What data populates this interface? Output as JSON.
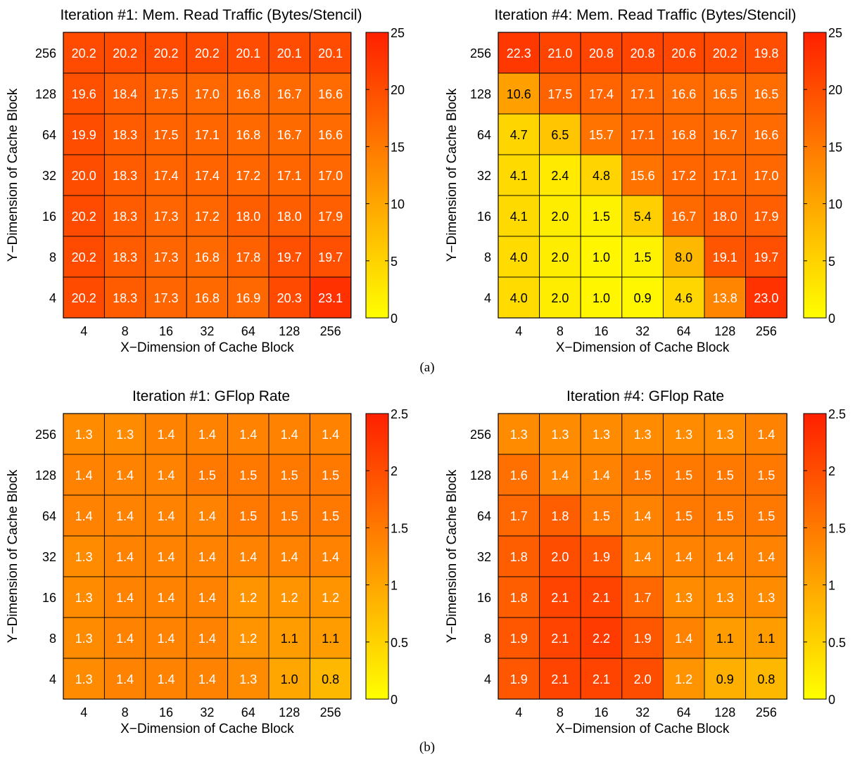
{
  "figure": {
    "caption_a": "(a)",
    "caption_b": "(b)"
  },
  "chart_data": [
    {
      "type": "heatmap",
      "title": "Iteration #1: Mem. Read Traffic (Bytes/Stencil)",
      "xlabel": "X−Dimension of Cache Block",
      "ylabel": "Y−Dimension of Cache Block",
      "x_categories": [
        "4",
        "8",
        "16",
        "32",
        "64",
        "128",
        "256"
      ],
      "y_categories": [
        "256",
        "128",
        "64",
        "32",
        "16",
        "8",
        "4"
      ],
      "values": [
        [
          20.2,
          20.2,
          20.2,
          20.2,
          20.1,
          20.1,
          20.1
        ],
        [
          19.6,
          18.4,
          17.5,
          17.0,
          16.8,
          16.7,
          16.6
        ],
        [
          19.9,
          18.3,
          17.5,
          17.1,
          16.8,
          16.7,
          16.6
        ],
        [
          20.0,
          18.3,
          17.4,
          17.4,
          17.2,
          17.1,
          17.0
        ],
        [
          20.2,
          18.3,
          17.3,
          17.2,
          18.0,
          18.0,
          17.9
        ],
        [
          20.2,
          18.3,
          17.3,
          16.8,
          17.8,
          19.7,
          19.7
        ],
        [
          20.2,
          18.3,
          17.3,
          16.8,
          16.9,
          20.3,
          23.1
        ]
      ],
      "value_labels": [
        [
          "20.2",
          "20.2",
          "20.2",
          "20.2",
          "20.1",
          "20.1",
          "20.1"
        ],
        [
          "19.6",
          "18.4",
          "17.5",
          "17.0",
          "16.8",
          "16.7",
          "16.6"
        ],
        [
          "19.9",
          "18.3",
          "17.5",
          "17.1",
          "16.8",
          "16.7",
          "16.6"
        ],
        [
          "20.0",
          "18.3",
          "17.4",
          "17.4",
          "17.2",
          "17.1",
          "17.0"
        ],
        [
          "20.2",
          "18.3",
          "17.3",
          "17.2",
          "18.0",
          "18.0",
          "17.9"
        ],
        [
          "20.2",
          "18.3",
          "17.3",
          "16.8",
          "17.8",
          "19.7",
          "19.7"
        ],
        [
          "20.2",
          "18.3",
          "17.3",
          "16.8",
          "16.9",
          "20.3",
          "23.1"
        ]
      ],
      "colorbar": {
        "range": [
          0,
          25
        ],
        "ticks": [
          "0",
          "5",
          "10",
          "15",
          "20",
          "25"
        ],
        "tick_values": [
          0,
          5,
          10,
          15,
          20,
          25
        ]
      },
      "colormap": {
        "low": "#ffff00",
        "high": "#ff2000"
      },
      "label_colors": {
        "light": "#ffffff",
        "dark": "#000000"
      }
    },
    {
      "type": "heatmap",
      "title": "Iteration #4: Mem. Read Traffic (Bytes/Stencil)",
      "xlabel": "X−Dimension of Cache Block",
      "ylabel": "Y−Dimension of Cache Block",
      "x_categories": [
        "4",
        "8",
        "16",
        "32",
        "64",
        "128",
        "256"
      ],
      "y_categories": [
        "256",
        "128",
        "64",
        "32",
        "16",
        "8",
        "4"
      ],
      "values": [
        [
          22.3,
          21.0,
          20.8,
          20.8,
          20.6,
          20.2,
          19.8
        ],
        [
          10.6,
          17.5,
          17.4,
          17.1,
          16.6,
          16.5,
          16.5
        ],
        [
          4.7,
          6.5,
          15.7,
          17.1,
          16.8,
          16.7,
          16.6
        ],
        [
          4.1,
          2.4,
          4.8,
          15.6,
          17.2,
          17.1,
          17.0
        ],
        [
          4.1,
          2.0,
          1.5,
          5.4,
          16.7,
          18.0,
          17.9
        ],
        [
          4.0,
          2.0,
          1.0,
          1.5,
          8.0,
          19.1,
          19.7
        ],
        [
          4.0,
          2.0,
          1.0,
          0.9,
          4.6,
          13.8,
          23.0
        ]
      ],
      "value_labels": [
        [
          "22.3",
          "21.0",
          "20.8",
          "20.8",
          "20.6",
          "20.2",
          "19.8"
        ],
        [
          "10.6",
          "17.5",
          "17.4",
          "17.1",
          "16.6",
          "16.5",
          "16.5"
        ],
        [
          "4.7",
          "6.5",
          "15.7",
          "17.1",
          "16.8",
          "16.7",
          "16.6"
        ],
        [
          "4.1",
          "2.4",
          "4.8",
          "15.6",
          "17.2",
          "17.1",
          "17.0"
        ],
        [
          "4.1",
          "2.0",
          "1.5",
          "5.4",
          "16.7",
          "18.0",
          "17.9"
        ],
        [
          "4.0",
          "2.0",
          "1.0",
          "1.5",
          "8.0",
          "19.1",
          "19.7"
        ],
        [
          "4.0",
          "2.0",
          "1.0",
          "0.9",
          "4.6",
          "13.8",
          "23.0"
        ]
      ],
      "colorbar": {
        "range": [
          0,
          25
        ],
        "ticks": [
          "0",
          "5",
          "10",
          "15",
          "20",
          "25"
        ],
        "tick_values": [
          0,
          5,
          10,
          15,
          20,
          25
        ]
      },
      "colormap": {
        "low": "#ffff00",
        "high": "#ff2000"
      },
      "label_colors": {
        "light": "#ffffff",
        "dark": "#000000"
      }
    },
    {
      "type": "heatmap",
      "title": "Iteration #1: GFlop Rate",
      "xlabel": "X−Dimension of Cache Block",
      "ylabel": "Y−Dimension of Cache Block",
      "x_categories": [
        "4",
        "8",
        "16",
        "32",
        "64",
        "128",
        "256"
      ],
      "y_categories": [
        "256",
        "128",
        "64",
        "32",
        "16",
        "8",
        "4"
      ],
      "values": [
        [
          1.3,
          1.3,
          1.4,
          1.4,
          1.4,
          1.4,
          1.4
        ],
        [
          1.4,
          1.4,
          1.4,
          1.5,
          1.5,
          1.5,
          1.5
        ],
        [
          1.4,
          1.4,
          1.4,
          1.4,
          1.5,
          1.5,
          1.5
        ],
        [
          1.3,
          1.4,
          1.4,
          1.4,
          1.4,
          1.4,
          1.4
        ],
        [
          1.3,
          1.4,
          1.4,
          1.4,
          1.2,
          1.2,
          1.2
        ],
        [
          1.3,
          1.4,
          1.4,
          1.4,
          1.2,
          1.1,
          1.1
        ],
        [
          1.3,
          1.4,
          1.4,
          1.4,
          1.3,
          1.0,
          0.8
        ]
      ],
      "value_labels": [
        [
          "1.3",
          "1.3",
          "1.4",
          "1.4",
          "1.4",
          "1.4",
          "1.4"
        ],
        [
          "1.4",
          "1.4",
          "1.4",
          "1.5",
          "1.5",
          "1.5",
          "1.5"
        ],
        [
          "1.4",
          "1.4",
          "1.4",
          "1.4",
          "1.5",
          "1.5",
          "1.5"
        ],
        [
          "1.3",
          "1.4",
          "1.4",
          "1.4",
          "1.4",
          "1.4",
          "1.4"
        ],
        [
          "1.3",
          "1.4",
          "1.4",
          "1.4",
          "1.2",
          "1.2",
          "1.2"
        ],
        [
          "1.3",
          "1.4",
          "1.4",
          "1.4",
          "1.2",
          "1.1",
          "1.1"
        ],
        [
          "1.3",
          "1.4",
          "1.4",
          "1.4",
          "1.3",
          "1.0",
          "0.8"
        ]
      ],
      "colorbar": {
        "range": [
          0,
          2.5
        ],
        "ticks": [
          "0",
          "0.5",
          "1",
          "1.5",
          "2",
          "2.5"
        ],
        "tick_values": [
          0,
          0.5,
          1,
          1.5,
          2,
          2.5
        ]
      },
      "colormap": {
        "low": "#ffff00",
        "high": "#ff2000"
      },
      "label_colors": {
        "light": "#ffffff",
        "dark": "#000000"
      }
    },
    {
      "type": "heatmap",
      "title": "Iteration #4: GFlop Rate",
      "xlabel": "X−Dimension of Cache Block",
      "ylabel": "Y−Dimension of Cache Block",
      "x_categories": [
        "4",
        "8",
        "16",
        "32",
        "64",
        "128",
        "256"
      ],
      "y_categories": [
        "256",
        "128",
        "64",
        "32",
        "16",
        "8",
        "4"
      ],
      "values": [
        [
          1.3,
          1.3,
          1.3,
          1.3,
          1.3,
          1.3,
          1.4
        ],
        [
          1.6,
          1.4,
          1.4,
          1.5,
          1.5,
          1.5,
          1.5
        ],
        [
          1.7,
          1.8,
          1.5,
          1.4,
          1.5,
          1.5,
          1.5
        ],
        [
          1.8,
          2.0,
          1.9,
          1.4,
          1.4,
          1.4,
          1.4
        ],
        [
          1.8,
          2.1,
          2.1,
          1.7,
          1.3,
          1.3,
          1.3
        ],
        [
          1.9,
          2.1,
          2.2,
          1.9,
          1.4,
          1.1,
          1.1
        ],
        [
          1.9,
          2.1,
          2.1,
          2.0,
          1.2,
          0.9,
          0.8
        ]
      ],
      "value_labels": [
        [
          "1.3",
          "1.3",
          "1.3",
          "1.3",
          "1.3",
          "1.3",
          "1.4"
        ],
        [
          "1.6",
          "1.4",
          "1.4",
          "1.5",
          "1.5",
          "1.5",
          "1.5"
        ],
        [
          "1.7",
          "1.8",
          "1.5",
          "1.4",
          "1.5",
          "1.5",
          "1.5"
        ],
        [
          "1.8",
          "2.0",
          "1.9",
          "1.4",
          "1.4",
          "1.4",
          "1.4"
        ],
        [
          "1.8",
          "2.1",
          "2.1",
          "1.7",
          "1.3",
          "1.3",
          "1.3"
        ],
        [
          "1.9",
          "2.1",
          "2.2",
          "1.9",
          "1.4",
          "1.1",
          "1.1"
        ],
        [
          "1.9",
          "2.1",
          "2.1",
          "2.0",
          "1.2",
          "0.9",
          "0.8"
        ]
      ],
      "colorbar": {
        "range": [
          0,
          2.5
        ],
        "ticks": [
          "0",
          "0.5",
          "1",
          "1.5",
          "2",
          "2.5"
        ],
        "tick_values": [
          0,
          0.5,
          1,
          1.5,
          2,
          2.5
        ]
      },
      "colormap": {
        "low": "#ffff00",
        "high": "#ff2000"
      },
      "label_colors": {
        "light": "#ffffff",
        "dark": "#000000"
      }
    }
  ]
}
